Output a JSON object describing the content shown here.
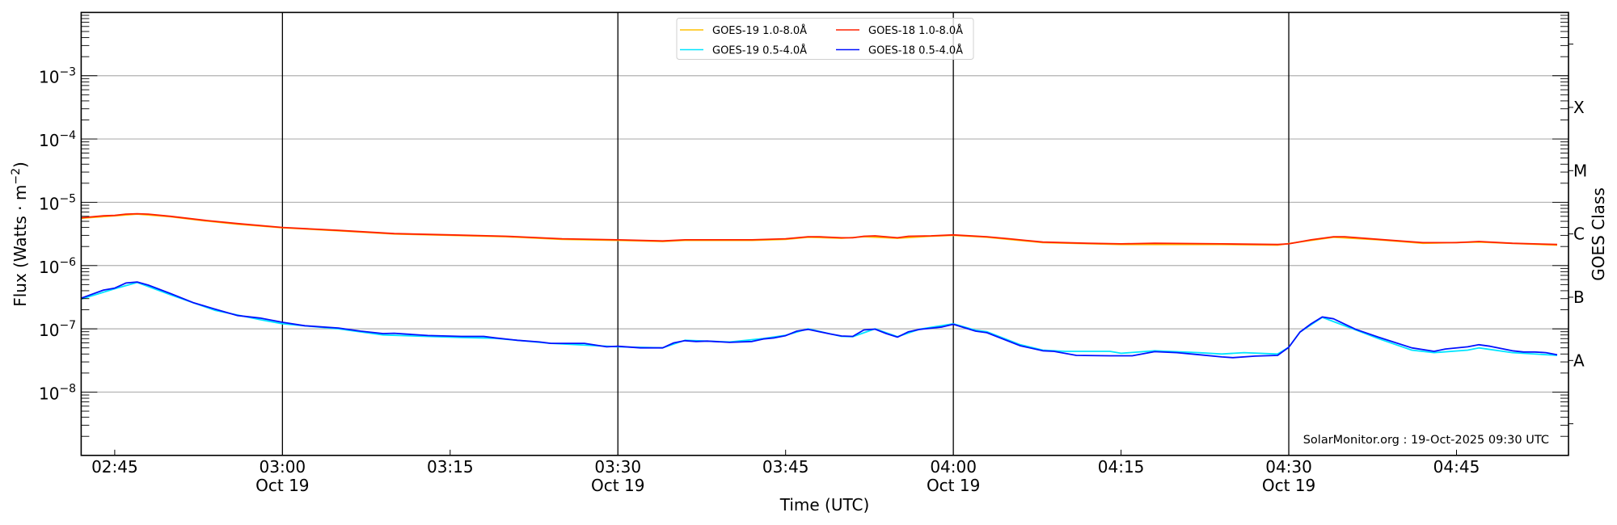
{
  "chart_data": {
    "type": "line",
    "xlabel": "Time (UTC)",
    "ylabel": {
      "text": "Flux (Watts · m",
      "exp": "−2",
      "close": ")"
    },
    "y2label": "GOES Class",
    "y_scale": "log",
    "ylim": [
      1e-09,
      0.01
    ],
    "xlim": [
      "02:42",
      "04:55"
    ],
    "grid": {
      "horizontal": true,
      "color": "#b0b0b0"
    },
    "legend_position": "top-center",
    "annotation": "SolarMonitor.org : 19-Oct-2025 09:30 UTC",
    "x_ticks": [
      {
        "time": "02:45",
        "label": "02:45",
        "date": ""
      },
      {
        "time": "03:00",
        "label": "03:00",
        "date": "Oct 19"
      },
      {
        "time": "03:15",
        "label": "03:15",
        "date": ""
      },
      {
        "time": "03:30",
        "label": "03:30",
        "date": "Oct 19"
      },
      {
        "time": "03:45",
        "label": "03:45",
        "date": ""
      },
      {
        "time": "04:00",
        "label": "04:00",
        "date": "Oct 19"
      },
      {
        "time": "04:15",
        "label": "04:15",
        "date": ""
      },
      {
        "time": "04:30",
        "label": "04:30",
        "date": "Oct 19"
      },
      {
        "time": "04:45",
        "label": "04:45",
        "date": ""
      }
    ],
    "y_ticks": [
      {
        "value": 0.001,
        "base": "10",
        "exp": "−3"
      },
      {
        "value": 0.0001,
        "base": "10",
        "exp": "−4"
      },
      {
        "value": 1e-05,
        "base": "10",
        "exp": "−5"
      },
      {
        "value": 1e-06,
        "base": "10",
        "exp": "−6"
      },
      {
        "value": 1e-07,
        "base": "10",
        "exp": "−7"
      },
      {
        "value": 1e-08,
        "base": "10",
        "exp": "−8"
      }
    ],
    "goes_classes": [
      {
        "label": "X",
        "value": 0.000316
      },
      {
        "label": "M",
        "value": 3.16e-05
      },
      {
        "label": "C",
        "value": 3.16e-06
      },
      {
        "label": "B",
        "value": 3.16e-07
      },
      {
        "label": "A",
        "value": 3.16e-08
      }
    ],
    "series": [
      {
        "name": "GOES-19 1.0-8.0Å",
        "color": "#ffc000",
        "x": [
          "02:42",
          "02:45",
          "02:47",
          "02:50",
          "02:53",
          "02:56",
          "03:00",
          "03:05",
          "03:10",
          "03:15",
          "03:20",
          "03:25",
          "03:30",
          "03:34",
          "03:36",
          "03:42",
          "03:45",
          "03:47",
          "03:50",
          "03:52",
          "03:55",
          "03:58",
          "04:00",
          "04:03",
          "04:08",
          "04:15",
          "04:24",
          "04:29",
          "04:32",
          "04:34",
          "04:38",
          "04:42",
          "04:47",
          "04:54"
        ],
        "y": [
          5.6e-06,
          6.1e-06,
          6.5e-06,
          5.9e-06,
          5.1e-06,
          4.5e-06,
          3.95e-06,
          3.55e-06,
          3.15e-06,
          3e-06,
          2.85e-06,
          2.6e-06,
          2.5e-06,
          2.4e-06,
          2.5e-06,
          2.5e-06,
          2.6e-06,
          2.8e-06,
          2.7e-06,
          2.85e-06,
          2.7e-06,
          2.9e-06,
          3e-06,
          2.8e-06,
          2.3e-06,
          2.15e-06,
          2.15e-06,
          2.1e-06,
          2.5e-06,
          2.8e-06,
          2.55e-06,
          2.25e-06,
          2.35e-06,
          2.1e-06
        ]
      },
      {
        "name": "GOES-18 1.0-8.0Å",
        "color": "#ff2000",
        "x": [
          "02:42",
          "02:44",
          "02:45",
          "02:46",
          "02:47",
          "02:48",
          "02:50",
          "02:53",
          "02:56",
          "03:00",
          "03:05",
          "03:10",
          "03:15",
          "03:20",
          "03:25",
          "03:30",
          "03:34",
          "03:36",
          "03:42",
          "03:45",
          "03:47",
          "03:48",
          "03:50",
          "03:51",
          "03:52",
          "03:53",
          "03:55",
          "03:56",
          "03:58",
          "04:00",
          "04:03",
          "04:05",
          "04:08",
          "04:12",
          "04:15",
          "04:18",
          "04:24",
          "04:29",
          "04:30",
          "04:32",
          "04:34",
          "04:35",
          "04:38",
          "04:42",
          "04:45",
          "04:47",
          "04:50",
          "04:54"
        ],
        "y": [
          5.7e-06,
          6.1e-06,
          6.2e-06,
          6.5e-06,
          6.6e-06,
          6.5e-06,
          6e-06,
          5.2e-06,
          4.6e-06,
          4e-06,
          3.6e-06,
          3.2e-06,
          3.05e-06,
          2.9e-06,
          2.65e-06,
          2.55e-06,
          2.45e-06,
          2.55e-06,
          2.55e-06,
          2.65e-06,
          2.85e-06,
          2.85e-06,
          2.75e-06,
          2.75e-06,
          2.9e-06,
          2.95e-06,
          2.75e-06,
          2.9e-06,
          2.95e-06,
          3.05e-06,
          2.85e-06,
          2.65e-06,
          2.35e-06,
          2.25e-06,
          2.2e-06,
          2.25e-06,
          2.2e-06,
          2.15e-06,
          2.2e-06,
          2.55e-06,
          2.85e-06,
          2.85e-06,
          2.6e-06,
          2.3e-06,
          2.3e-06,
          2.4e-06,
          2.25e-06,
          2.15e-06
        ]
      },
      {
        "name": "GOES-19 0.5-4.0Å",
        "color": "#00e5ff",
        "x": [
          "02:42",
          "02:45",
          "02:47",
          "02:50",
          "02:54",
          "02:58",
          "03:00",
          "03:05",
          "03:09",
          "03:16",
          "03:19",
          "03:24",
          "03:30",
          "03:34",
          "03:36",
          "03:40",
          "03:43",
          "03:45",
          "03:47",
          "03:50",
          "03:51",
          "03:53",
          "03:55",
          "03:57",
          "04:00",
          "04:02",
          "04:03",
          "04:06",
          "04:08",
          "04:10",
          "04:14",
          "04:15",
          "04:18",
          "04:22",
          "04:24",
          "04:26",
          "04:29",
          "04:30",
          "04:31",
          "04:33",
          "04:36",
          "04:38",
          "04:41",
          "04:43",
          "04:46",
          "04:47",
          "04:50",
          "04:54"
        ],
        "y": [
          2.95e-07,
          4.3e-07,
          5.4e-07,
          3.45e-07,
          1.95e-07,
          1.4e-07,
          1.2e-07,
          1e-07,
          8e-08,
          7.3e-08,
          7.1e-08,
          5.9e-08,
          5.2e-08,
          5e-08,
          6.6e-08,
          6.2e-08,
          7e-08,
          7.9e-08,
          1e-07,
          7.6e-08,
          7.5e-08,
          1e-07,
          7.5e-08,
          9.9e-08,
          1.2e-07,
          9.5e-08,
          9e-08,
          5.6e-08,
          4.6e-08,
          4.4e-08,
          4.4e-08,
          4.1e-08,
          4.5e-08,
          4.2e-08,
          4e-08,
          4.2e-08,
          4e-08,
          5.1e-08,
          8.9e-08,
          1.52e-07,
          9.6e-08,
          7e-08,
          4.6e-08,
          4.2e-08,
          4.6e-08,
          5e-08,
          4.2e-08,
          3.8e-08
        ]
      },
      {
        "name": "GOES-18 0.5-4.0Å",
        "color": "#0010ff",
        "x": [
          "02:42",
          "02:44",
          "02:45",
          "02:46",
          "02:47",
          "02:48",
          "02:50",
          "02:52",
          "02:54",
          "02:56",
          "02:58",
          "03:00",
          "03:02",
          "03:05",
          "03:07",
          "03:09",
          "03:10",
          "03:13",
          "03:16",
          "03:18",
          "03:19",
          "03:21",
          "03:23",
          "03:24",
          "03:27",
          "03:29",
          "03:30",
          "03:32",
          "03:34",
          "03:35",
          "03:36",
          "03:37",
          "03:38",
          "03:40",
          "03:42",
          "03:43",
          "03:44",
          "03:45",
          "03:46",
          "03:47",
          "03:49",
          "03:50",
          "03:51",
          "03:52",
          "03:53",
          "03:54",
          "03:55",
          "03:56",
          "03:57",
          "03:59",
          "04:00",
          "04:02",
          "04:03",
          "04:06",
          "04:08",
          "04:09",
          "04:11",
          "04:14",
          "04:16",
          "04:18",
          "04:20",
          "04:22",
          "04:24",
          "04:25",
          "04:27",
          "04:29",
          "04:30",
          "04:31",
          "04:32",
          "04:33",
          "04:34",
          "04:36",
          "04:38",
          "04:41",
          "04:43",
          "04:44",
          "04:46",
          "04:47",
          "04:48",
          "04:50",
          "04:51",
          "04:52",
          "04:53",
          "04:54"
        ],
        "y": [
          3.05e-07,
          4.1e-07,
          4.4e-07,
          5.3e-07,
          5.5e-07,
          4.9e-07,
          3.6e-07,
          2.6e-07,
          2.04e-07,
          1.62e-07,
          1.48e-07,
          1.27e-07,
          1.12e-07,
          1.03e-07,
          9.2e-08,
          8.4e-08,
          8.5e-08,
          7.85e-08,
          7.6e-08,
          7.6e-08,
          7.2e-08,
          6.6e-08,
          6.2e-08,
          5.9e-08,
          5.9e-08,
          5.2e-08,
          5.3e-08,
          5e-08,
          5e-08,
          6e-08,
          6.5e-08,
          6.3e-08,
          6.4e-08,
          6.1e-08,
          6.3e-08,
          6.9e-08,
          7.2e-08,
          7.8e-08,
          9.2e-08,
          9.8e-08,
          8.3e-08,
          7.7e-08,
          7.6e-08,
          9.6e-08,
          9.9e-08,
          8.4e-08,
          7.4e-08,
          9e-08,
          9.8e-08,
          1.07e-07,
          1.18e-07,
          9.2e-08,
          8.7e-08,
          5.4e-08,
          4.5e-08,
          4.4e-08,
          3.8e-08,
          3.75e-08,
          3.75e-08,
          4.35e-08,
          4.2e-08,
          3.9e-08,
          3.6e-08,
          3.5e-08,
          3.7e-08,
          3.8e-08,
          5.1e-08,
          8.9e-08,
          1.2e-07,
          1.54e-07,
          1.44e-07,
          9.8e-08,
          7.4e-08,
          5e-08,
          4.4e-08,
          4.8e-08,
          5.2e-08,
          5.6e-08,
          5.3e-08,
          4.5e-08,
          4.3e-08,
          4.3e-08,
          4.2e-08,
          3.9e-08
        ]
      }
    ],
    "legend_order": [
      0,
      2,
      1,
      3
    ]
  }
}
